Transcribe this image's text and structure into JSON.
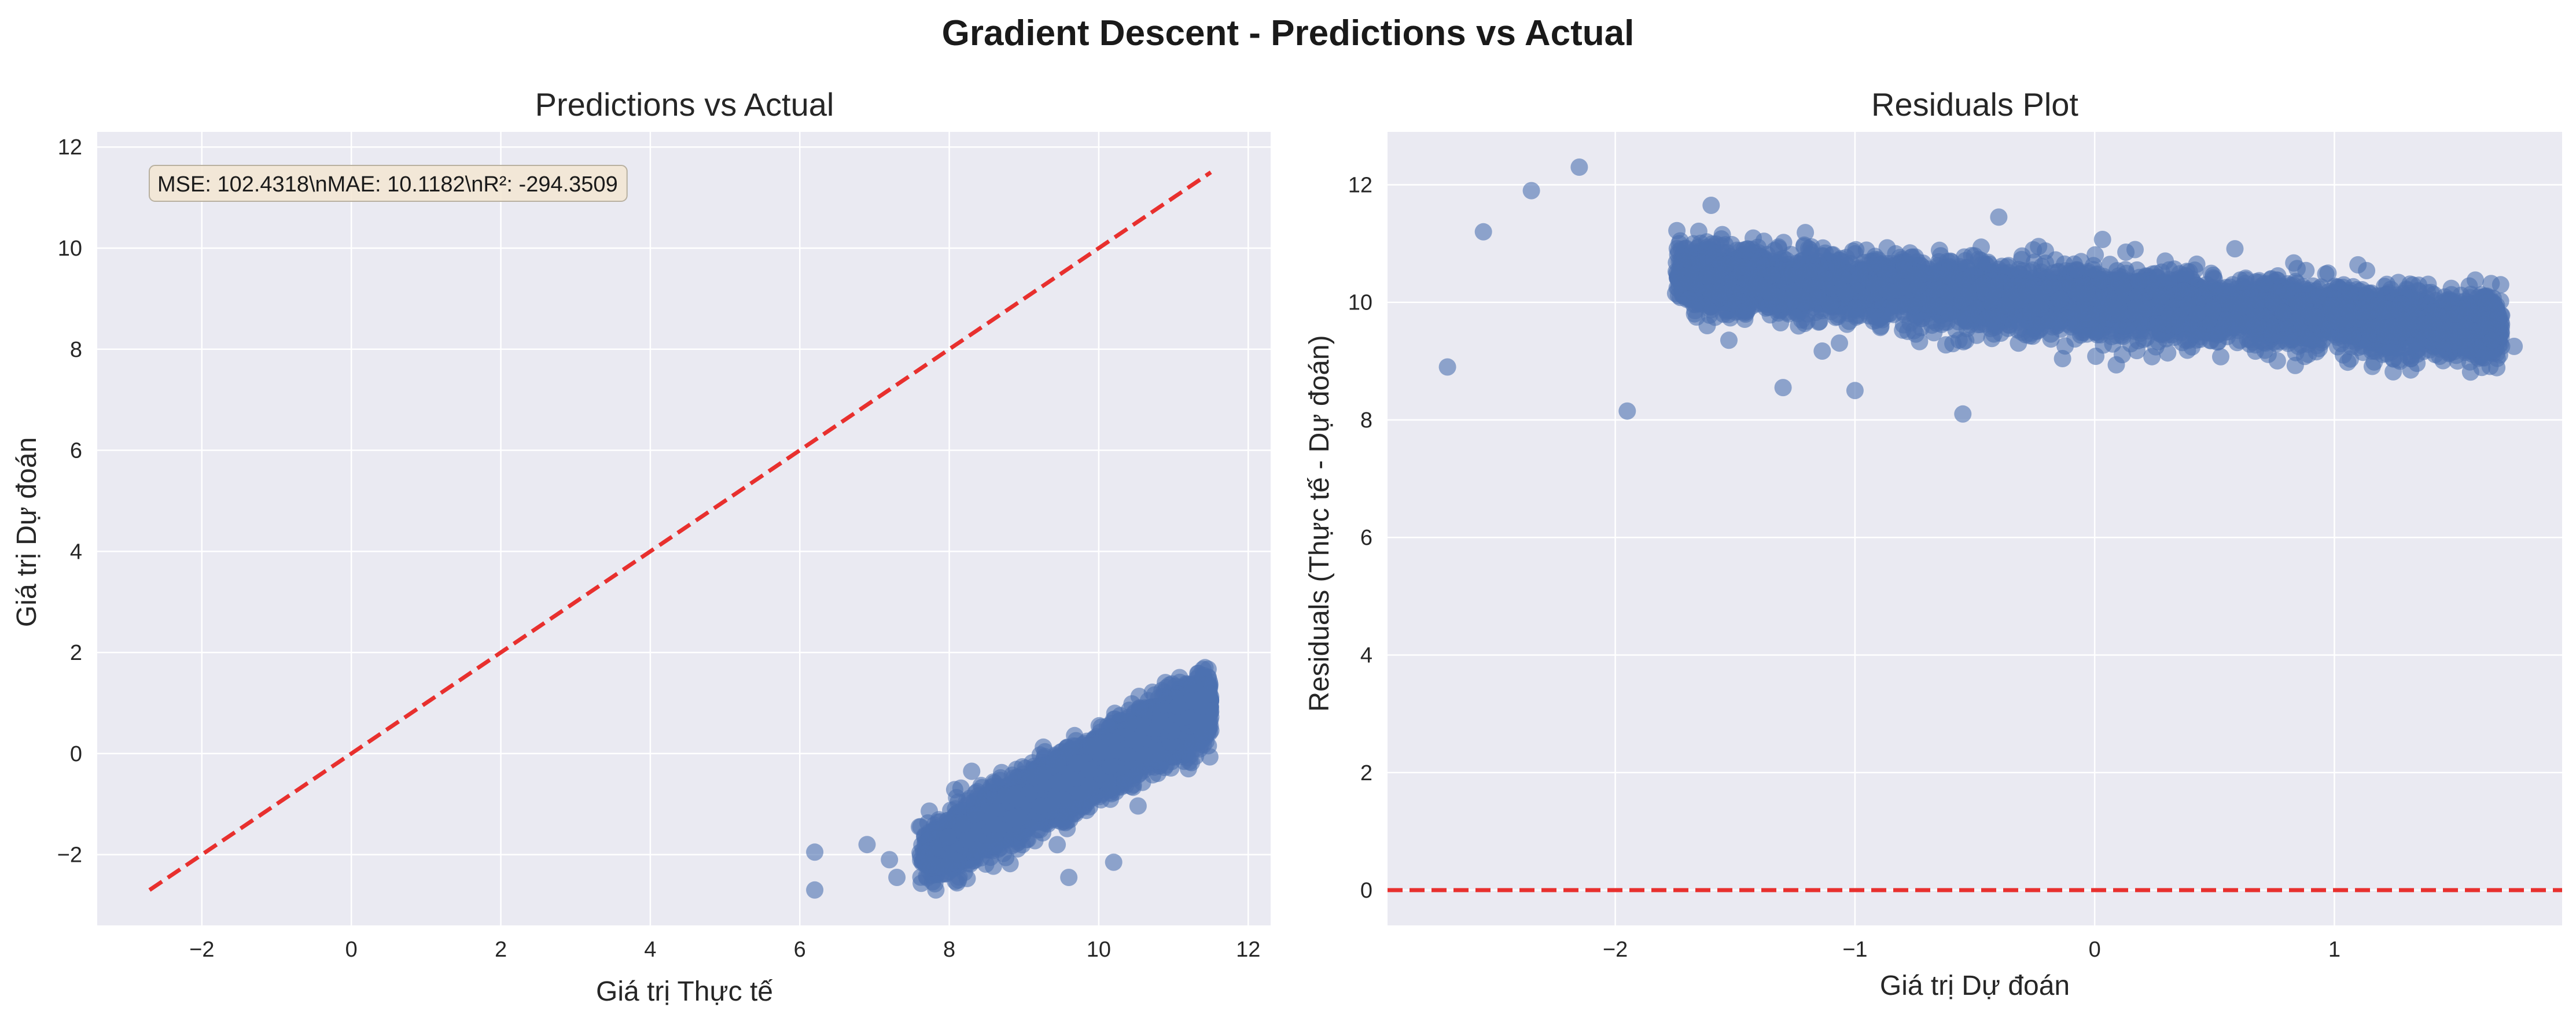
{
  "figure": {
    "suptitle": "Gradient Descent - Predictions vs Actual",
    "background": "#ffffff",
    "axes_background": "#eaeaf2",
    "point_color": "#4c72b0",
    "line_color": "#e8302e"
  },
  "chart_data": [
    {
      "type": "scatter",
      "title": "Predictions vs Actual",
      "xlabel": "Giá trị Thực tế",
      "ylabel": "Giá trị Dự đoán",
      "xlim": [
        -3.4,
        12.3
      ],
      "ylim": [
        -3.4,
        12.3
      ],
      "xticks": [
        -2,
        0,
        2,
        4,
        6,
        8,
        10,
        12
      ],
      "yticks": [
        -2,
        0,
        2,
        4,
        6,
        8,
        10,
        12
      ],
      "xtick_labels": [
        "−2",
        "0",
        "2",
        "4",
        "6",
        "8",
        "10",
        "12"
      ],
      "ytick_labels": [
        "−2",
        "0",
        "2",
        "4",
        "6",
        "8",
        "10",
        "12"
      ],
      "grid": true,
      "annotation": "MSE: 102.4318\\nMAE: 10.1182\\nR²: -294.3509",
      "annotation_box_color": "#f3e6d2",
      "reference_line": {
        "style": "dashed",
        "from": [
          -2.7,
          -2.7
        ],
        "to": [
          11.5,
          11.5
        ]
      },
      "cluster": {
        "points_approx": 5000,
        "x_range": [
          6.2,
          11.5
        ],
        "y_range": [
          -2.7,
          1.7
        ],
        "trend": {
          "slope": 0.8,
          "intercept": -8.2
        },
        "noise_sd": 0.3
      },
      "outliers": [
        {
          "x": 6.2,
          "y": -1.95
        },
        {
          "x": 6.2,
          "y": -2.7
        },
        {
          "x": 6.9,
          "y": -1.8
        },
        {
          "x": 7.2,
          "y": -2.1
        },
        {
          "x": 7.3,
          "y": -2.45
        },
        {
          "x": 7.6,
          "y": -1.45
        },
        {
          "x": 8.3,
          "y": -0.35
        },
        {
          "x": 9.6,
          "y": -2.45
        },
        {
          "x": 10.2,
          "y": -2.15
        },
        {
          "x": 11.2,
          "y": -0.3
        }
      ]
    },
    {
      "type": "scatter",
      "title": "Residuals Plot",
      "xlabel": "Giá trị Dự đoán",
      "ylabel": "Residuals (Thực tế - Dự đoán)",
      "xlim": [
        -2.95,
        1.95
      ],
      "ylim": [
        -0.6,
        12.9
      ],
      "xticks": [
        -2,
        -1,
        0,
        1
      ],
      "yticks": [
        0,
        2,
        4,
        6,
        8,
        10,
        12
      ],
      "xtick_labels": [
        "−2",
        "−1",
        "0",
        "1"
      ],
      "ytick_labels": [
        "0",
        "2",
        "4",
        "6",
        "8",
        "10",
        "12"
      ],
      "grid": true,
      "reference_line": {
        "style": "dashed",
        "y": 0
      },
      "cluster": {
        "points_approx": 5000,
        "x_range": [
          -2.7,
          1.75
        ],
        "y_range": [
          8.1,
          12.3
        ],
        "trend": {
          "slope": -0.25,
          "intercept": 10.0
        },
        "noise_sd": 0.28
      },
      "outliers": [
        {
          "x": -2.7,
          "y": 8.9
        },
        {
          "x": -2.55,
          "y": 11.2
        },
        {
          "x": -2.35,
          "y": 11.9
        },
        {
          "x": -2.15,
          "y": 12.3
        },
        {
          "x": -1.95,
          "y": 8.15
        },
        {
          "x": -1.6,
          "y": 11.65
        },
        {
          "x": -1.3,
          "y": 8.55
        },
        {
          "x": -1.0,
          "y": 8.5
        },
        {
          "x": -0.55,
          "y": 8.1
        },
        {
          "x": -0.4,
          "y": 11.45
        },
        {
          "x": 1.6,
          "y": 9.2
        },
        {
          "x": 1.75,
          "y": 9.25
        }
      ]
    }
  ]
}
